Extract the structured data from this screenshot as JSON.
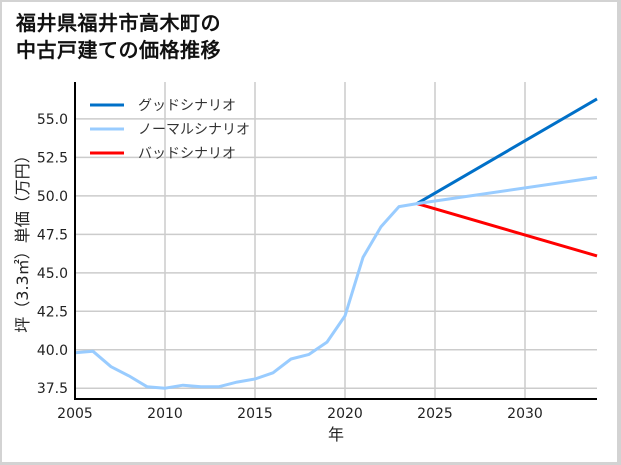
{
  "header": {
    "title_line1": "福井県福井市高木町の",
    "title_line2": "中古戸建ての価格推移"
  },
  "chart_data": {
    "type": "line",
    "title": "福井県福井市高木町の中古戸建ての価格推移",
    "xlabel": "年",
    "ylabel": "坪（3.3㎡）単価（万円）",
    "xlim": [
      2005,
      2034
    ],
    "ylim": [
      36.8,
      57.4
    ],
    "xticks": [
      2005,
      2010,
      2015,
      2020,
      2025,
      2030
    ],
    "yticks": [
      37.5,
      40.0,
      42.5,
      45.0,
      47.5,
      50.0,
      52.5,
      55.0
    ],
    "ytick_labels": [
      "37.5",
      "40.0",
      "42.5",
      "45.0",
      "47.5",
      "50.0",
      "52.5",
      "55.0"
    ],
    "grid": true,
    "legend_position": "upper left",
    "series": [
      {
        "name": "グッドシナリオ",
        "color": "#0070c8",
        "x": [
          2024,
          2034
        ],
        "values": [
          49.5,
          56.3
        ]
      },
      {
        "name": "ノーマルシナリオ",
        "color": "#99ccff",
        "x": [
          2005,
          2006,
          2007,
          2008,
          2009,
          2010,
          2011,
          2012,
          2013,
          2014,
          2015,
          2016,
          2017,
          2018,
          2019,
          2020,
          2021,
          2022,
          2023,
          2024,
          2034
        ],
        "values": [
          39.8,
          39.9,
          38.9,
          38.3,
          37.6,
          37.5,
          37.7,
          37.6,
          37.6,
          37.9,
          38.1,
          38.5,
          39.4,
          39.7,
          40.5,
          42.2,
          46.0,
          48.0,
          49.3,
          49.5,
          51.2
        ]
      },
      {
        "name": "バッドシナリオ",
        "color": "#ff0000",
        "x": [
          2024,
          2034
        ],
        "values": [
          49.5,
          46.1
        ]
      }
    ]
  }
}
